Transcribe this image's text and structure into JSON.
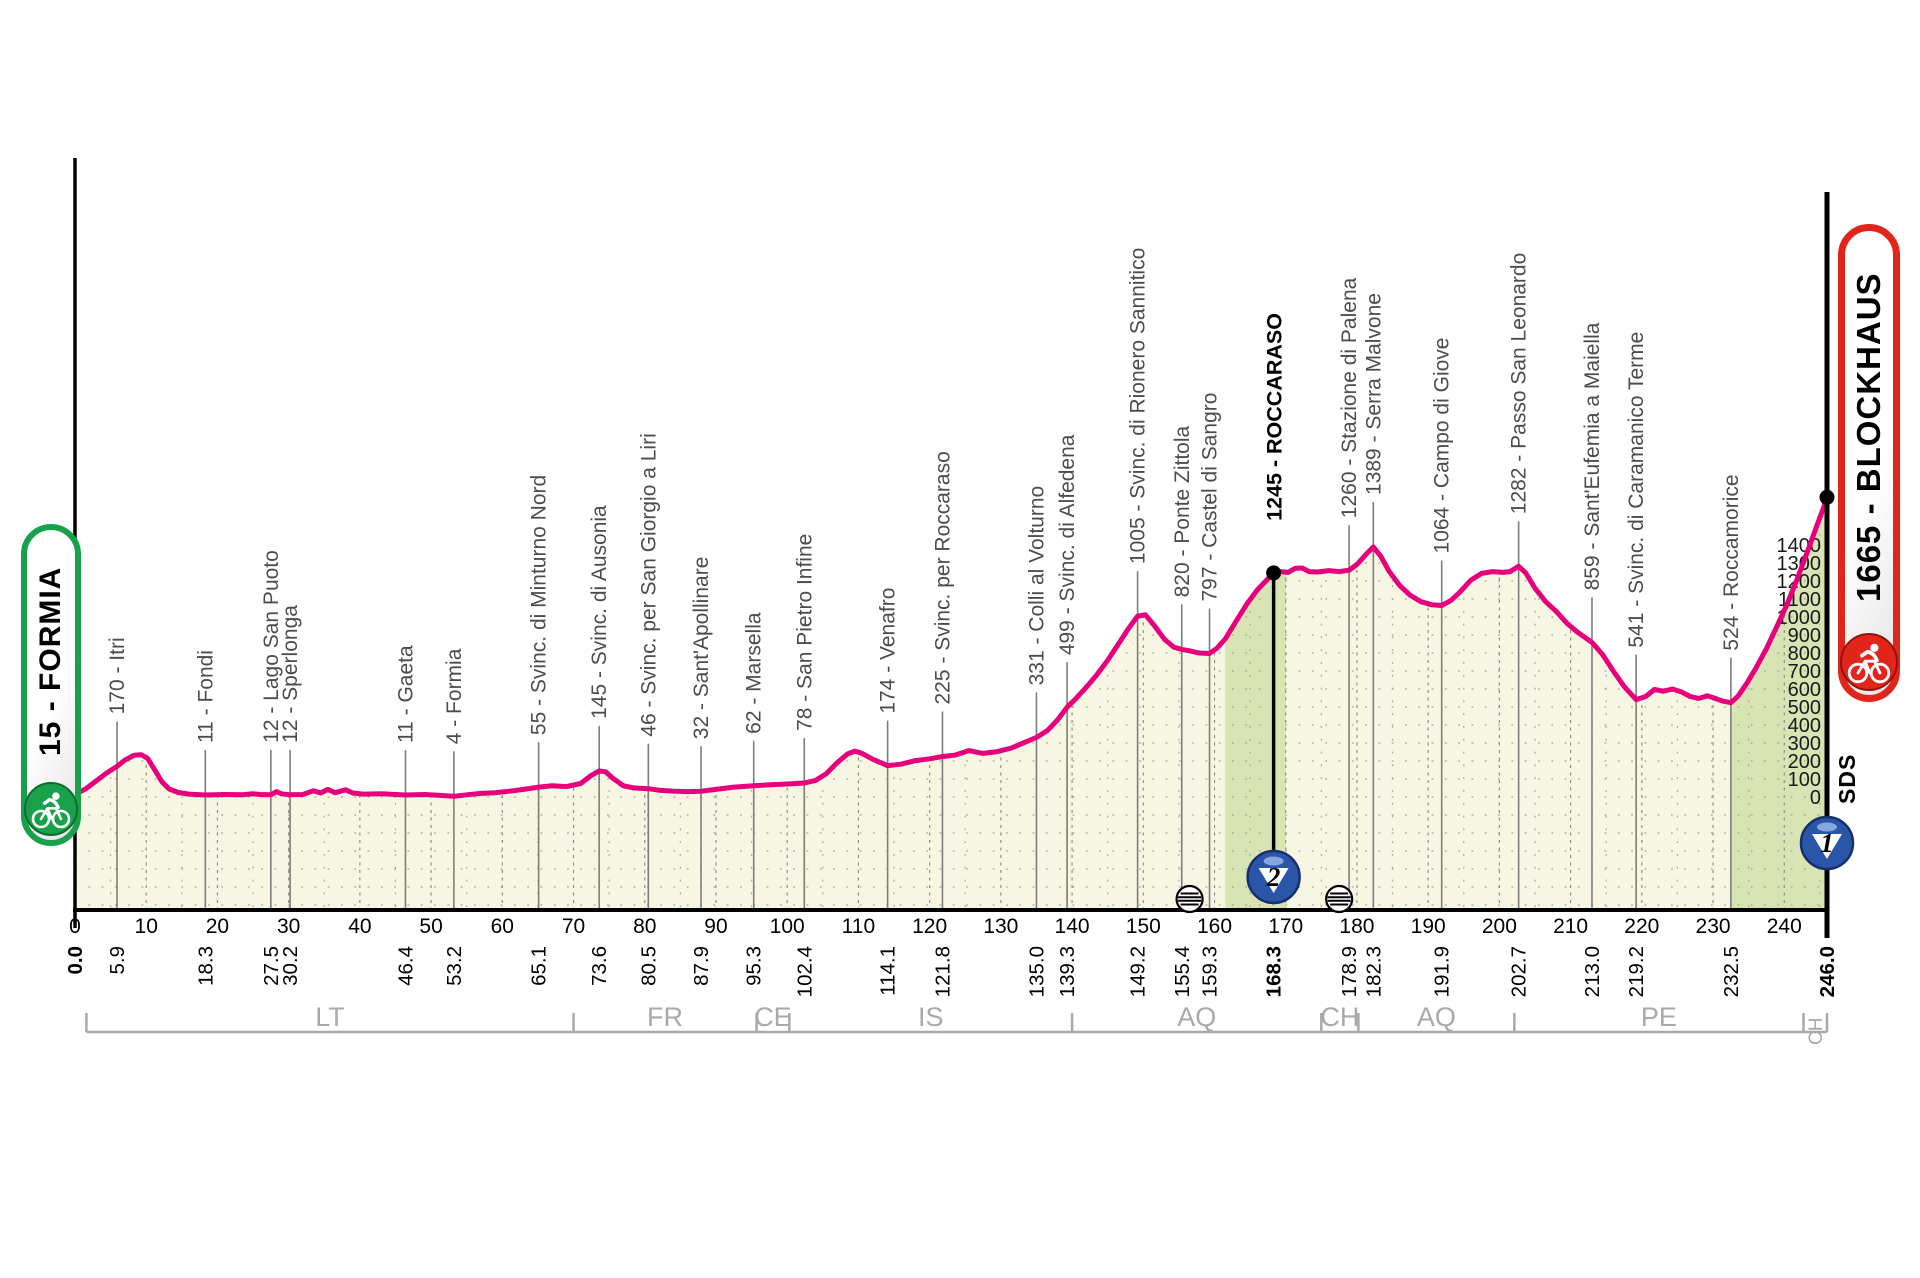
{
  "stage": {
    "start_badge": {
      "label": "15 - FORMIA",
      "color": "#18a14a"
    },
    "finish_badge": {
      "label": "1665 - BLOCKHAUS",
      "color": "#e1251b"
    },
    "sds_label": "SDS"
  },
  "colors": {
    "profile_line": "#e7007c",
    "area_fill": "#f7f6e3",
    "climb_fill": "#d9e4b4",
    "grid_dot": "#a6a699",
    "waypoint_line": "#7d7d7d",
    "waypoint_text": "#4c4c4c",
    "axis": "#000000",
    "province": "#a9a9a9",
    "badge_blue": "#2b55a8",
    "badge_blue_dark": "#16306b"
  },
  "chart_data": {
    "type": "area",
    "title": "",
    "xlabel": "",
    "ylabel": "",
    "x_unit": "km",
    "y_unit": "m",
    "x_range": [
      0,
      246
    ],
    "y_range": [
      0,
      1665
    ],
    "x_ticks": [
      0,
      10,
      20,
      30,
      40,
      50,
      60,
      70,
      80,
      90,
      100,
      110,
      120,
      130,
      140,
      150,
      160,
      170,
      180,
      190,
      200,
      210,
      220,
      230,
      240
    ],
    "y_ticks": [
      0,
      100,
      200,
      300,
      400,
      500,
      600,
      700,
      800,
      900,
      1000,
      1100,
      1200,
      1300,
      1400
    ],
    "grid": true,
    "waypoints": [
      {
        "km": 0.0,
        "name": null,
        "dist": "0.0",
        "bold": true,
        "summit": false
      },
      {
        "km": 5.9,
        "name": "170 - Itri",
        "dist": "5.9",
        "bold": false,
        "summit": false
      },
      {
        "km": 18.3,
        "name": "11 - Fondi",
        "dist": "18.3",
        "bold": false,
        "summit": false
      },
      {
        "km": 27.5,
        "name": "12 - Lago San Puoto",
        "dist": "27.5",
        "bold": false,
        "summit": false
      },
      {
        "km": 30.2,
        "name": "12 - Sperlonga",
        "dist": "30.2",
        "bold": false,
        "summit": false
      },
      {
        "km": 46.4,
        "name": "11 - Gaeta",
        "dist": "46.4",
        "bold": false,
        "summit": false
      },
      {
        "km": 53.2,
        "name": "4 - Formia",
        "dist": "53.2",
        "bold": false,
        "summit": false
      },
      {
        "km": 65.1,
        "name": "55 - Svinc. di Minturno Nord",
        "dist": "65.1",
        "bold": false,
        "summit": false
      },
      {
        "km": 73.6,
        "name": "145 - Svinc. di Ausonia",
        "dist": "73.6",
        "bold": false,
        "summit": false
      },
      {
        "km": 80.5,
        "name": "46 - Svinc. per San Giorgio a Liri",
        "dist": "80.5",
        "bold": false,
        "summit": false
      },
      {
        "km": 87.9,
        "name": "32 - Sant'Apollinare",
        "dist": "87.9",
        "bold": false,
        "summit": false
      },
      {
        "km": 95.3,
        "name": "62 - Marsella",
        "dist": "95.3",
        "bold": false,
        "summit": false
      },
      {
        "km": 102.4,
        "name": "78 - San Pietro Infine",
        "dist": "102.4",
        "bold": false,
        "summit": false
      },
      {
        "km": 114.1,
        "name": "174 - Venafro",
        "dist": "114.1",
        "bold": false,
        "summit": false
      },
      {
        "km": 121.8,
        "name": "225 - Svinc. per Roccaraso",
        "dist": "121.8",
        "bold": false,
        "summit": false
      },
      {
        "km": 135.0,
        "name": "331 - Colli al Volturno",
        "dist": "135.0",
        "bold": false,
        "summit": false
      },
      {
        "km": 139.3,
        "name": "499 - Svinc. di Alfedena",
        "dist": "139.3",
        "bold": false,
        "summit": false
      },
      {
        "km": 149.2,
        "name": "1005 - Svinc. di Rionero Sannitico",
        "dist": "149.2",
        "bold": false,
        "summit": false
      },
      {
        "km": 155.4,
        "name": "820 - Ponte Zittola",
        "dist": "155.4",
        "bold": false,
        "summit": false
      },
      {
        "km": 159.3,
        "name": "797 - Castel di Sangro",
        "dist": "159.3",
        "bold": false,
        "summit": false
      },
      {
        "km": 168.3,
        "name": "1245 - ROCCARASO",
        "dist": "168.3",
        "bold": true,
        "summit": true
      },
      {
        "km": 178.9,
        "name": "1260 - Stazione di Palena",
        "dist": "178.9",
        "bold": false,
        "summit": false
      },
      {
        "km": 182.3,
        "name": "1389 - Serra Malvone",
        "dist": "182.3",
        "bold": false,
        "summit": false
      },
      {
        "km": 191.9,
        "name": "1064 - Campo di Giove",
        "dist": "191.9",
        "bold": false,
        "summit": false
      },
      {
        "km": 202.7,
        "name": "1282 - Passo San Leonardo",
        "dist": "202.7",
        "bold": false,
        "summit": false
      },
      {
        "km": 213.0,
        "name": "859 - Sant'Eufemia a Maiella",
        "dist": "213.0",
        "bold": false,
        "summit": false
      },
      {
        "km": 219.2,
        "name": "541 - Svinc. di Caramanico Terme",
        "dist": "219.2",
        "bold": false,
        "summit": false
      },
      {
        "km": 232.5,
        "name": "524 - Roccamorice",
        "dist": "232.5",
        "bold": false,
        "summit": false
      },
      {
        "km": 246.0,
        "name": null,
        "dist": "246.0",
        "bold": true,
        "summit": true
      }
    ],
    "climb_sections": [
      {
        "from": 161.5,
        "to": 170.0
      },
      {
        "from": 232.5,
        "to": 246.0
      }
    ],
    "markers": {
      "climbs": [
        {
          "km": 168.3,
          "category": "2"
        },
        {
          "km": 246.0,
          "category": "1"
        }
      ],
      "feed_zones_km": [
        156.5,
        177.5
      ]
    },
    "provinces": {
      "boundaries_km": [
        1.6,
        70.0,
        95.7,
        100.3,
        140.0,
        175.0,
        180.2,
        202.1,
        242.7,
        246.0
      ],
      "labels": [
        "LT",
        "FR",
        "CE",
        "IS",
        "AQ",
        "CH",
        "AQ",
        "PE",
        "CH"
      ],
      "rotated_last": true
    },
    "profile": [
      [
        0,
        15
      ],
      [
        1.5,
        45
      ],
      [
        3,
        90
      ],
      [
        4.5,
        135
      ],
      [
        5.9,
        170
      ],
      [
        7,
        205
      ],
      [
        8.3,
        232
      ],
      [
        9.3,
        235
      ],
      [
        10.2,
        215
      ],
      [
        11.2,
        150
      ],
      [
        12.2,
        85
      ],
      [
        13.2,
        45
      ],
      [
        14.5,
        25
      ],
      [
        16,
        16
      ],
      [
        18.3,
        11
      ],
      [
        21,
        14
      ],
      [
        23.5,
        13
      ],
      [
        25,
        18
      ],
      [
        26,
        14
      ],
      [
        27.5,
        12
      ],
      [
        28.3,
        30
      ],
      [
        29,
        18
      ],
      [
        30.2,
        12
      ],
      [
        32,
        14
      ],
      [
        33.5,
        35
      ],
      [
        34.5,
        22
      ],
      [
        35.5,
        42
      ],
      [
        36.5,
        24
      ],
      [
        38,
        40
      ],
      [
        39,
        22
      ],
      [
        40.5,
        16
      ],
      [
        43,
        18
      ],
      [
        46.4,
        11
      ],
      [
        49,
        14
      ],
      [
        51,
        10
      ],
      [
        53.2,
        4
      ],
      [
        55,
        12
      ],
      [
        57,
        20
      ],
      [
        59,
        24
      ],
      [
        61,
        32
      ],
      [
        63,
        42
      ],
      [
        65.1,
        55
      ],
      [
        67,
        62
      ],
      [
        69,
        58
      ],
      [
        71,
        75
      ],
      [
        72.5,
        120
      ],
      [
        73.6,
        145
      ],
      [
        74.5,
        140
      ],
      [
        75.5,
        105
      ],
      [
        77,
        62
      ],
      [
        78.5,
        50
      ],
      [
        80.5,
        46
      ],
      [
        82,
        38
      ],
      [
        84,
        33
      ],
      [
        86,
        30
      ],
      [
        87.9,
        32
      ],
      [
        90,
        42
      ],
      [
        92.5,
        55
      ],
      [
        95.3,
        62
      ],
      [
        97.5,
        68
      ],
      [
        100,
        72
      ],
      [
        102.4,
        78
      ],
      [
        104,
        92
      ],
      [
        105.5,
        130
      ],
      [
        107,
        190
      ],
      [
        108.5,
        240
      ],
      [
        109.5,
        255
      ],
      [
        110.5,
        242
      ],
      [
        112,
        210
      ],
      [
        114.1,
        174
      ],
      [
        116,
        182
      ],
      [
        118,
        202
      ],
      [
        120,
        212
      ],
      [
        121.8,
        225
      ],
      [
        123.5,
        232
      ],
      [
        125.5,
        258
      ],
      [
        127.5,
        242
      ],
      [
        129.5,
        252
      ],
      [
        131.5,
        272
      ],
      [
        133,
        298
      ],
      [
        135,
        331
      ],
      [
        136.5,
        368
      ],
      [
        138,
        430
      ],
      [
        139.3,
        499
      ],
      [
        140.5,
        545
      ],
      [
        142,
        610
      ],
      [
        143.5,
        680
      ],
      [
        145,
        760
      ],
      [
        146.5,
        850
      ],
      [
        148,
        940
      ],
      [
        149.2,
        1005
      ],
      [
        150.3,
        1012
      ],
      [
        151.5,
        955
      ],
      [
        153,
        875
      ],
      [
        154.3,
        832
      ],
      [
        155.4,
        820
      ],
      [
        156.5,
        812
      ],
      [
        157.8,
        800
      ],
      [
        159.3,
        797
      ],
      [
        160.3,
        825
      ],
      [
        161.5,
        878
      ],
      [
        163,
        975
      ],
      [
        164.5,
        1070
      ],
      [
        166,
        1150
      ],
      [
        167.2,
        1200
      ],
      [
        168.3,
        1245
      ],
      [
        169.3,
        1252
      ],
      [
        170.3,
        1248
      ],
      [
        171.3,
        1270
      ],
      [
        172.3,
        1272
      ],
      [
        173.3,
        1252
      ],
      [
        174.5,
        1250
      ],
      [
        176,
        1258
      ],
      [
        177.5,
        1252
      ],
      [
        178.9,
        1260
      ],
      [
        180,
        1292
      ],
      [
        181.2,
        1345
      ],
      [
        182.3,
        1389
      ],
      [
        183.3,
        1340
      ],
      [
        184.5,
        1255
      ],
      [
        186,
        1175
      ],
      [
        187.5,
        1120
      ],
      [
        189,
        1085
      ],
      [
        190.5,
        1068
      ],
      [
        191.9,
        1064
      ],
      [
        193.2,
        1092
      ],
      [
        194.5,
        1140
      ],
      [
        196,
        1205
      ],
      [
        197.5,
        1242
      ],
      [
        199,
        1252
      ],
      [
        200.5,
        1248
      ],
      [
        201.5,
        1252
      ],
      [
        202.7,
        1282
      ],
      [
        203.7,
        1245
      ],
      [
        205,
        1160
      ],
      [
        206.5,
        1085
      ],
      [
        208,
        1030
      ],
      [
        209.5,
        965
      ],
      [
        211,
        915
      ],
      [
        213,
        859
      ],
      [
        214.5,
        790
      ],
      [
        216,
        700
      ],
      [
        217.5,
        615
      ],
      [
        219.2,
        541
      ],
      [
        220.5,
        558
      ],
      [
        221.8,
        598
      ],
      [
        223,
        588
      ],
      [
        224.3,
        600
      ],
      [
        225.5,
        585
      ],
      [
        226.8,
        558
      ],
      [
        228,
        548
      ],
      [
        229.2,
        562
      ],
      [
        230.3,
        548
      ],
      [
        231.4,
        532
      ],
      [
        232.5,
        524
      ],
      [
        233.5,
        560
      ],
      [
        234.8,
        635
      ],
      [
        236,
        715
      ],
      [
        237.5,
        825
      ],
      [
        239,
        950
      ],
      [
        240.5,
        1080
      ],
      [
        242,
        1230
      ],
      [
        243.5,
        1390
      ],
      [
        244.7,
        1520
      ],
      [
        245.5,
        1605
      ],
      [
        246,
        1665
      ]
    ]
  }
}
